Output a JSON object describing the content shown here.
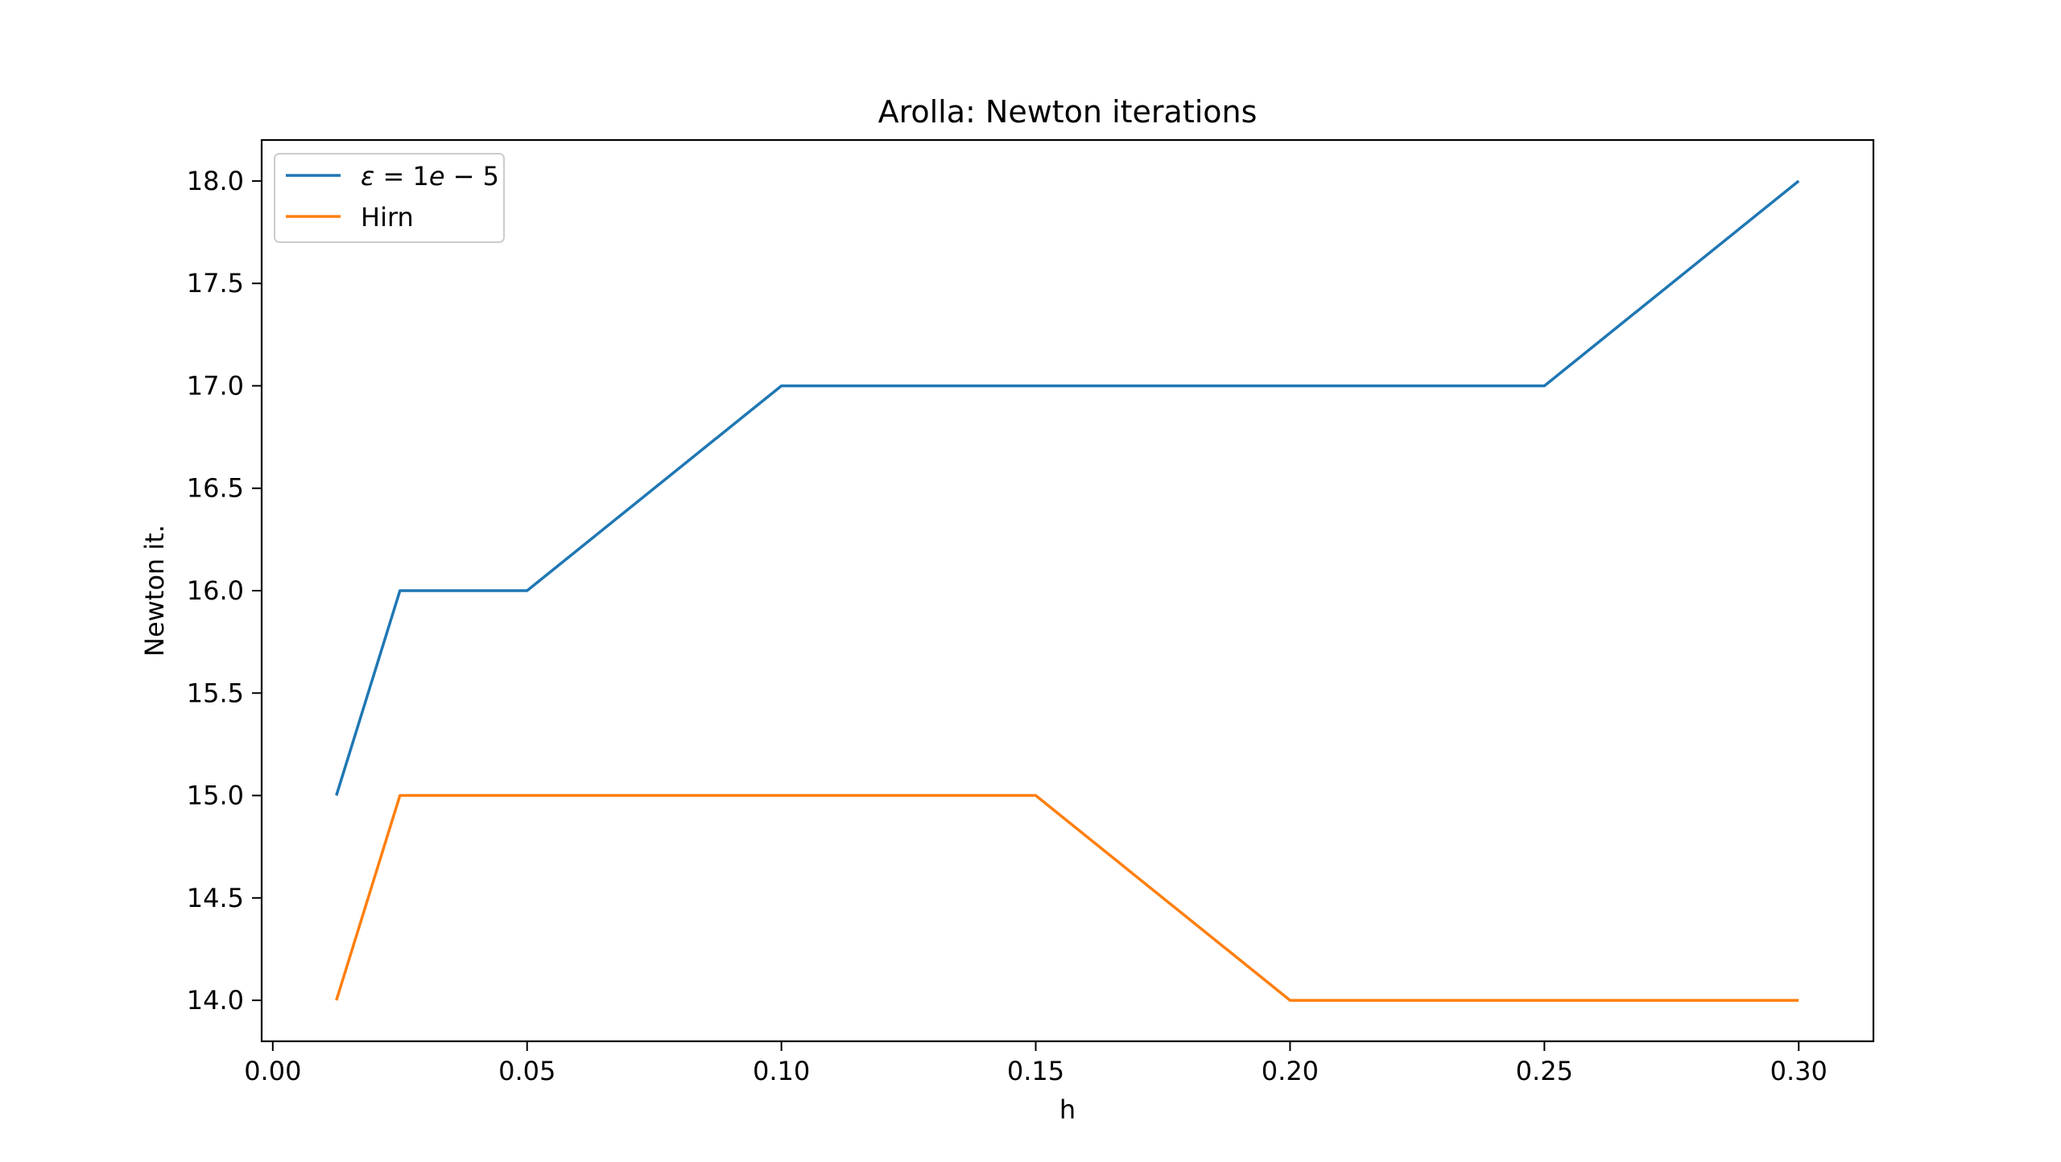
{
  "chart_data": {
    "type": "line",
    "title": "Arolla: Newton iterations",
    "xlabel": "h",
    "ylabel": "Newton it.",
    "xlim": [
      -0.0021875,
      0.3146875
    ],
    "ylim": [
      13.8,
      18.2
    ],
    "x_ticks": [
      0.0,
      0.05,
      0.1,
      0.15,
      0.2,
      0.25,
      0.3
    ],
    "x_tick_labels": [
      "0.00",
      "0.05",
      "0.10",
      "0.15",
      "0.20",
      "0.25",
      "0.30"
    ],
    "y_ticks": [
      14.0,
      14.5,
      15.0,
      15.5,
      16.0,
      16.5,
      17.0,
      17.5,
      18.0
    ],
    "y_tick_labels": [
      "14.0",
      "14.5",
      "15.0",
      "15.5",
      "16.0",
      "16.5",
      "17.0",
      "17.5",
      "18.0"
    ],
    "grid": false,
    "legend_position": "upper left",
    "x": [
      0.0125,
      0.025,
      0.05,
      0.1,
      0.15,
      0.2,
      0.25,
      0.3
    ],
    "series": [
      {
        "name": "ε = 1e − 5",
        "name_parts": [
          "ε",
          " = ",
          "1",
          "e",
          " − 5"
        ],
        "color": "#1f77b4",
        "values": [
          15,
          16,
          16,
          17,
          17,
          17,
          17,
          18
        ]
      },
      {
        "name": "Hirn",
        "color": "#ff7f0e",
        "values": [
          14,
          15,
          15,
          15,
          15,
          14,
          14,
          14
        ]
      }
    ]
  }
}
